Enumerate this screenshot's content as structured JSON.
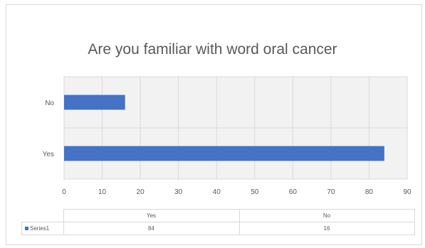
{
  "chart_data": {
    "type": "bar",
    "orientation": "horizontal",
    "title": "Are you familiar with word oral cancer",
    "categories": [
      "No",
      "Yes"
    ],
    "series": [
      {
        "name": "Series1",
        "values": [
          16,
          84
        ],
        "color": "#4472c4"
      }
    ],
    "xlim": [
      0,
      90
    ],
    "xticks": [
      0,
      10,
      20,
      30,
      40,
      50,
      60,
      70,
      80,
      90
    ],
    "grid": true,
    "data_table": {
      "columns": [
        "Yes",
        "No"
      ],
      "rows": [
        {
          "series": "Series1",
          "values": [
            "84",
            "16"
          ]
        }
      ]
    }
  }
}
